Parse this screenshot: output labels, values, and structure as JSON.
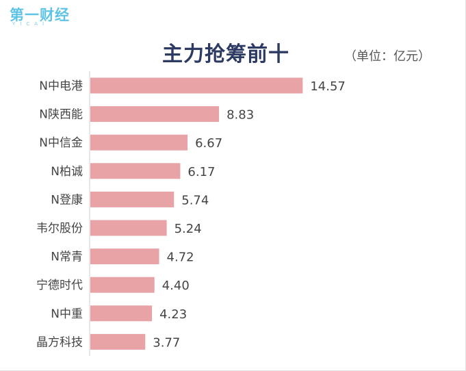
{
  "logo": {
    "text": "第一财经",
    "subtext": "YICAI"
  },
  "unit_label": "（单位：亿元）",
  "colors": {
    "bar": "#e8a3a6",
    "title": "#2d3b63",
    "logo": "#5fc3e6",
    "axis": "#d0d0d0",
    "text": "#444444"
  },
  "chart_data": {
    "type": "bar",
    "orientation": "horizontal",
    "title": "主力抢筹前十",
    "categories": [
      "N中电港",
      "N陕西能",
      "N中信金",
      "N柏诚",
      "N登康",
      "韦尔股份",
      "N常青",
      "宁德时代",
      "N中重",
      "晶方科技"
    ],
    "values": [
      14.57,
      8.83,
      6.67,
      6.17,
      5.74,
      5.24,
      4.72,
      4.4,
      4.23,
      3.77
    ],
    "value_labels": [
      "14.57",
      "8.83",
      "6.67",
      "6.17",
      "5.74",
      "5.24",
      "4.72",
      "4.40",
      "4.23",
      "3.77"
    ],
    "xlim": [
      0,
      16.45
    ],
    "grid": false,
    "legend": "none",
    "data_labels": true
  }
}
